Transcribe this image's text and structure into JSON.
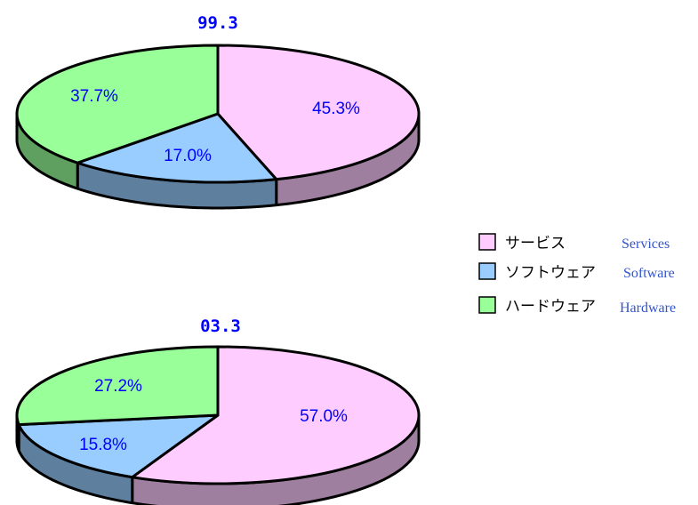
{
  "chart_data": [
    {
      "type": "pie",
      "title": "99.3",
      "categories": [
        "サービス",
        "ソフトウェア",
        "ハードウェア"
      ],
      "values": [
        45.3,
        17.0,
        37.7
      ],
      "labels": [
        "45.3%",
        "17.0%",
        "37.7%"
      ]
    },
    {
      "type": "pie",
      "title": "03.3",
      "categories": [
        "サービス",
        "ソフトウェア",
        "ハードウェア"
      ],
      "values": [
        57.0,
        15.8,
        27.2
      ],
      "labels": [
        "57.0%",
        "15.8%",
        "27.2%"
      ]
    }
  ],
  "legend": {
    "items": [
      {
        "label": "サービス",
        "label_en": "Services",
        "color": "#ffccff",
        "side_color": "#9f7f9f"
      },
      {
        "label": "ソフトウェア",
        "label_en": "Software",
        "color": "#99ccff",
        "side_color": "#5f7f9f"
      },
      {
        "label": "ハードウェア",
        "label_en": "Hardware",
        "color": "#99ff99",
        "side_color": "#5f9f5f"
      }
    ]
  }
}
